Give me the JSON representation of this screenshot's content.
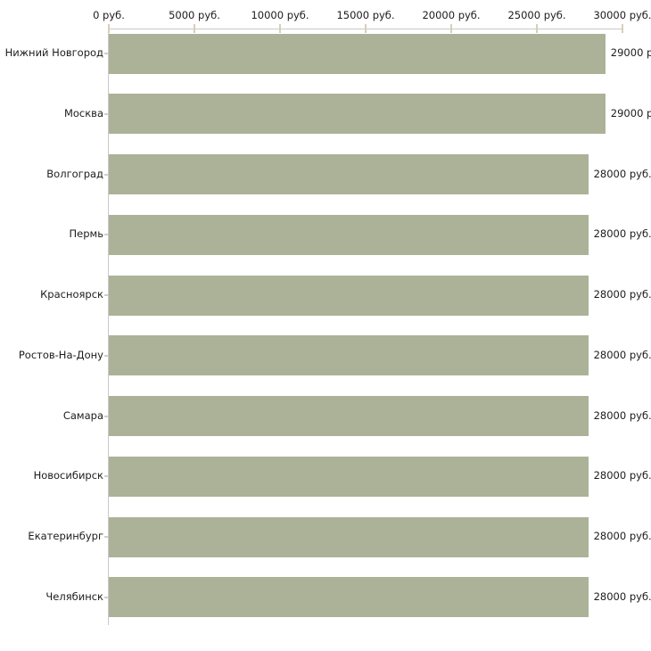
{
  "chart_data": {
    "type": "bar",
    "orientation": "horizontal",
    "title": "",
    "xlabel": "",
    "ylabel": "",
    "grid": "off",
    "legend": "none",
    "xlim": [
      0,
      30000
    ],
    "x_tick_labels": [
      "0 руб.",
      "5000 руб.",
      "10000 руб.",
      "15000 руб.",
      "20000 руб.",
      "25000 руб.",
      "30000 руб."
    ],
    "categories": [
      "Нижний Новгород",
      "Москва",
      "Волгоград",
      "Пермь",
      "Красноярск",
      "Ростов-На-Дону",
      "Самара",
      "Новосибирск",
      "Екатеринбург",
      "Челябинск"
    ],
    "values": [
      29000,
      29000,
      28000,
      28000,
      28000,
      28000,
      28000,
      28000,
      28000,
      28000
    ],
    "value_labels": [
      "29000 р",
      "29000 р",
      "28000 руб.",
      "28000 руб.",
      "28000 руб.",
      "28000 руб.",
      "28000 руб.",
      "28000 руб.",
      "28000 руб.",
      "28000 руб."
    ],
    "colors": {
      "bar": "#acb298",
      "axis": "#c9c9c9",
      "tick": "#d6cebe",
      "text": "#1c1c1c",
      "background": "#ffffff"
    }
  }
}
